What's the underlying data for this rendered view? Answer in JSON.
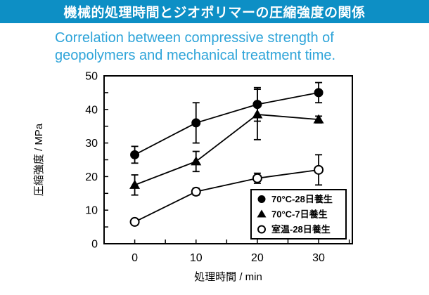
{
  "header": {
    "title_jp": "機械的処理時間とジオポリマーの圧縮強度の関係",
    "subtitle_en_line1": "Correlation between compressive strength of",
    "subtitle_en_line2": "geopolymers and mechanical treatment time.",
    "banner_color": "#0d8fc5",
    "subtitle_color": "#2ea4d9"
  },
  "chart_data": {
    "type": "line",
    "x": [
      0,
      10,
      20,
      30
    ],
    "xlabel": "処理時間 / min",
    "ylabel": "圧縮強度 / MPa",
    "xlim": [
      -5,
      35.5
    ],
    "ylim": [
      0,
      50
    ],
    "x_ticks": [
      0,
      10,
      20,
      30
    ],
    "y_ticks": [
      0,
      10,
      20,
      30,
      40,
      50
    ],
    "minor_tick_step": 5,
    "grid": false,
    "line_color": "#000000",
    "legend_position": "lower-right",
    "series": [
      {
        "name": "70°C-28日養生",
        "marker": "filled-circle",
        "values": [
          26.5,
          36,
          41.5,
          45
        ],
        "errors": [
          2.5,
          6,
          5,
          3
        ]
      },
      {
        "name": "70°C-7日養生",
        "marker": "filled-triangle",
        "values": [
          17.5,
          24.5,
          38.5,
          37
        ],
        "errors": [
          3,
          3,
          7.5,
          1
        ]
      },
      {
        "name": "室温-28日養生",
        "marker": "open-circle",
        "values": [
          6.5,
          15.5,
          19.5,
          22
        ],
        "errors": [
          0,
          1,
          1.5,
          4.5
        ]
      }
    ]
  }
}
